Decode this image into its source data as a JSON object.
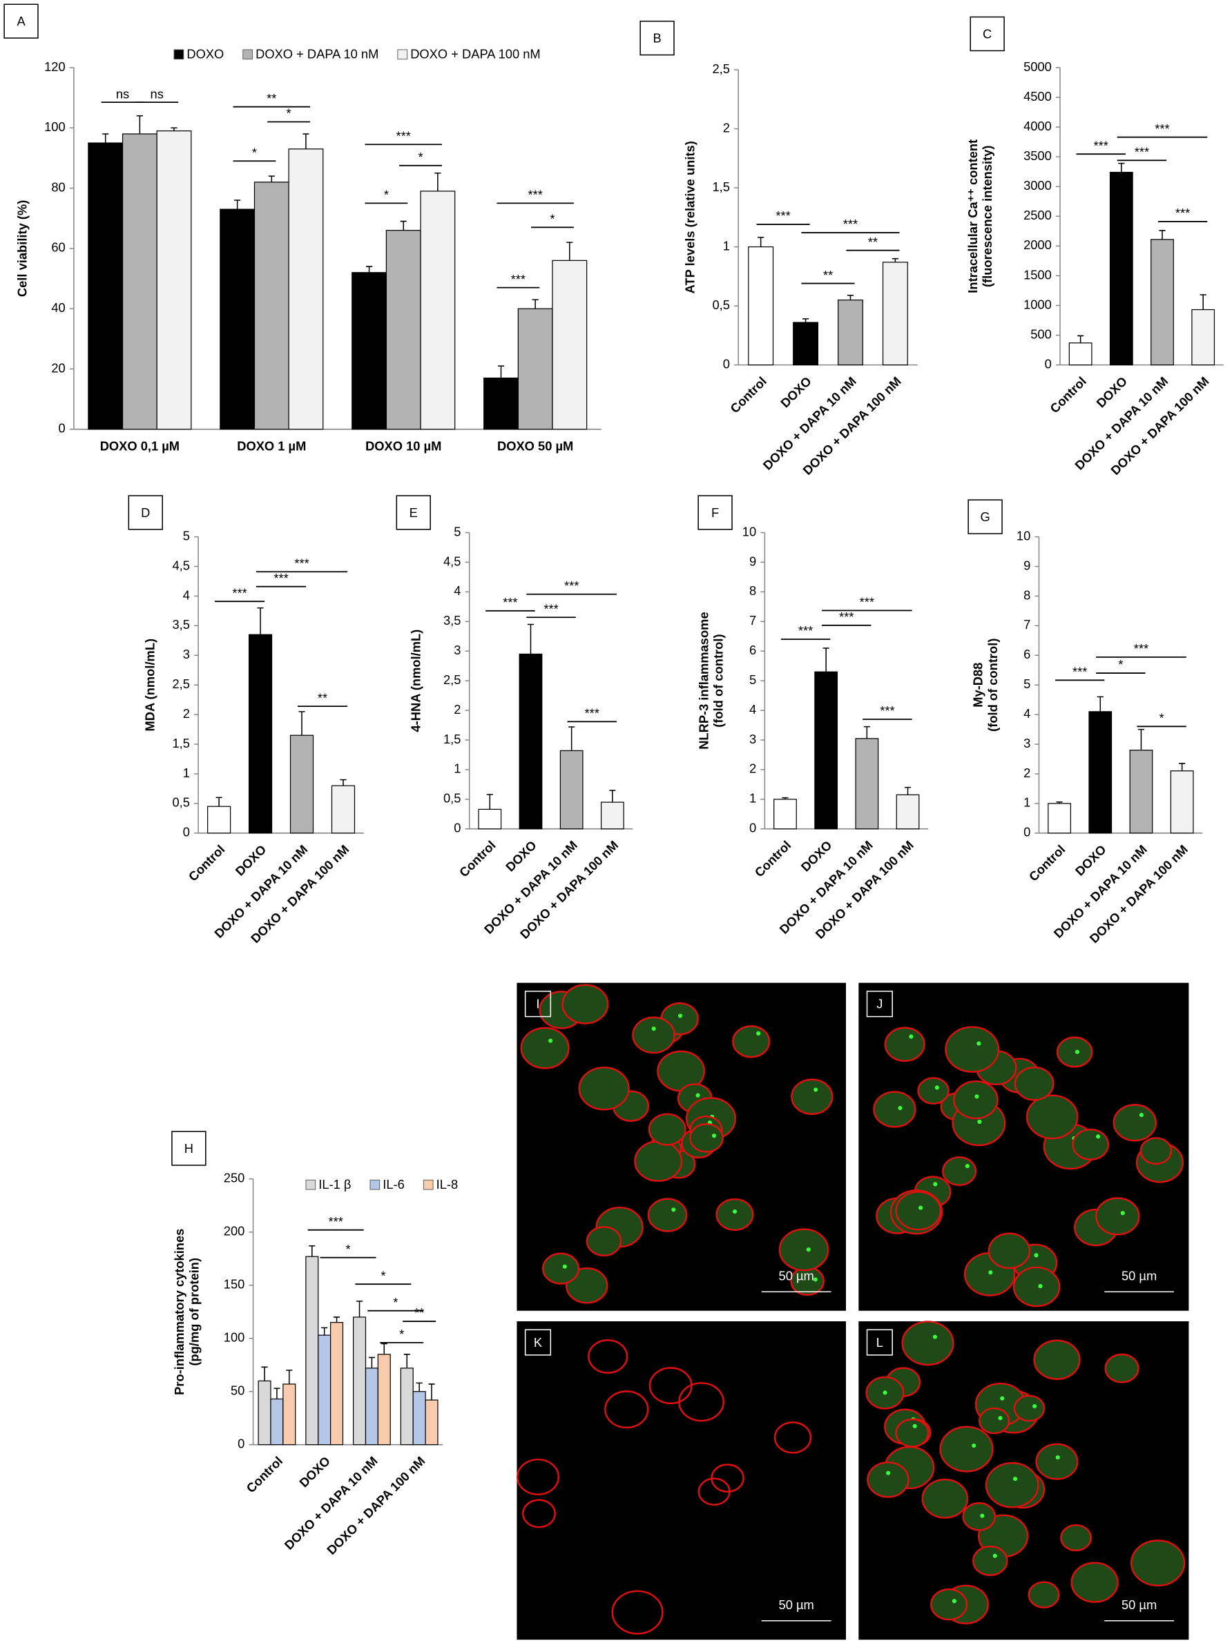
{
  "chart_data": [
    {
      "type": "bar",
      "panel": "A",
      "y_label": [
        "Cell viability (%)"
      ],
      "categories": [
        "DOXO  0,1 µM",
        "DOXO 1 µM",
        "DOXO 10 µM",
        "DOXO 50 µM"
      ],
      "series": [
        {
          "name": "DOXO",
          "color": "#000000",
          "values": [
            95,
            73,
            52,
            17
          ],
          "errors": [
            3,
            3,
            2,
            4
          ]
        },
        {
          "name": "DOXO + DAPA 10  nM",
          "color": "#b3b3b3",
          "values": [
            98,
            82,
            66,
            40
          ],
          "errors": [
            6,
            2,
            3,
            3
          ]
        },
        {
          "name": "DOXO + DAPA 100  nM",
          "color": "#f2f2f2",
          "values": [
            99,
            93,
            79,
            56
          ],
          "errors": [
            1,
            5,
            6,
            6
          ]
        }
      ],
      "ylim": [
        0,
        120
      ],
      "yticks": [
        0,
        20,
        40,
        60,
        80,
        100,
        120
      ],
      "annotations": [
        "ns",
        "ns",
        "**",
        "*",
        "*",
        "***",
        "*",
        "*",
        "***",
        "*",
        "***"
      ]
    },
    {
      "type": "bar",
      "panel": "B",
      "y_label": [
        "ATP levels (relative units)"
      ],
      "categories": [
        "Control",
        "DOXO",
        "DOXO + DAPA 10 nM",
        "DOXO + DAPA 100 nM"
      ],
      "values": [
        1,
        0.36,
        0.55,
        0.87
      ],
      "errors": [
        0.08,
        0.03,
        0.04,
        0.03
      ],
      "colors": [
        "#ffffff",
        "#000000",
        "#b3b3b3",
        "#f2f2f2"
      ],
      "ylim": [
        0,
        2.5
      ],
      "yticks": [
        0,
        {
          "value": 0.5,
          "label": "0,5"
        },
        1,
        {
          "value": 1.5,
          "label": "1,5"
        },
        2,
        {
          "value": 2.5,
          "label": "2,5"
        }
      ],
      "annotations": [
        "***",
        "***",
        "**",
        "**"
      ]
    },
    {
      "type": "bar",
      "panel": "C",
      "y_label": [
        "Intracellular Ca⁺⁺ content",
        "(fluorescence intensity)"
      ],
      "categories": [
        "Control",
        "DOXO",
        "DOXO + DAPA 10 nM",
        "DOXO + DAPA 100 nM"
      ],
      "values": [
        370,
        3240,
        2110,
        930
      ],
      "errors": [
        120,
        150,
        150,
        250
      ],
      "colors": [
        "#ffffff",
        "#000000",
        "#b3b3b3",
        "#f2f2f2"
      ],
      "ylim": [
        0,
        5000
      ],
      "yticks": [
        0,
        500,
        1000,
        1500,
        2000,
        2500,
        3000,
        3500,
        4000,
        4500,
        5000
      ],
      "annotations": [
        "***",
        "***",
        "***",
        "***"
      ]
    },
    {
      "type": "bar",
      "panel": "D",
      "y_label": [
        "MDA (nmol/mL)"
      ],
      "categories": [
        "Control",
        "DOXO",
        "DOXO + DAPA 10 nM",
        "DOXO + DAPA 100 nM"
      ],
      "values": [
        0.45,
        3.35,
        1.65,
        0.8
      ],
      "errors": [
        0.15,
        0.45,
        0.4,
        0.1
      ],
      "colors": [
        "#ffffff",
        "#000000",
        "#b3b3b3",
        "#f2f2f2"
      ],
      "ylim": [
        0,
        5
      ],
      "yticks": [
        0,
        {
          "value": 0.5,
          "label": "0,5"
        },
        1,
        {
          "value": 1.5,
          "label": "1,5"
        },
        2,
        {
          "value": 2.5,
          "label": "2,5"
        },
        3,
        {
          "value": 3.5,
          "label": "3,5"
        },
        4,
        {
          "value": 4.5,
          "label": "4,5"
        },
        5
      ],
      "annotations": [
        "***",
        "***",
        "***",
        "**"
      ]
    },
    {
      "type": "bar",
      "panel": "E",
      "y_label": [
        "4-HNA (nmol/mL)"
      ],
      "categories": [
        "Control",
        "DOXO",
        "DOXO + DAPA 10 nM",
        "DOXO + DAPA 100 nM"
      ],
      "values": [
        0.33,
        2.95,
        1.32,
        0.45
      ],
      "errors": [
        0.25,
        0.5,
        0.4,
        0.2
      ],
      "colors": [
        "#ffffff",
        "#000000",
        "#b3b3b3",
        "#f2f2f2"
      ],
      "ylim": [
        0,
        5
      ],
      "yticks": [
        0,
        {
          "value": 0.5,
          "label": "0,5"
        },
        1,
        {
          "value": 1.5,
          "label": "1,5"
        },
        2,
        {
          "value": 2.5,
          "label": "2,5"
        },
        3,
        {
          "value": 3.5,
          "label": "3,5"
        },
        4,
        {
          "value": 4.5,
          "label": "4,5"
        },
        5
      ],
      "annotations": [
        "***",
        "***",
        "***",
        "***"
      ]
    },
    {
      "type": "bar",
      "panel": "F",
      "y_label": [
        "NLRP-3 inflammasome",
        "(fold of control)"
      ],
      "categories": [
        "Control",
        "DOXO",
        "DOXO + DAPA 10 nM",
        "DOXO + DAPA 100 nM"
      ],
      "values": [
        1,
        5.3,
        3.05,
        1.15
      ],
      "errors": [
        0.05,
        0.8,
        0.4,
        0.25
      ],
      "colors": [
        "#ffffff",
        "#000000",
        "#b3b3b3",
        "#f2f2f2"
      ],
      "ylim": [
        0,
        10
      ],
      "yticks": [
        0,
        1,
        2,
        3,
        4,
        5,
        6,
        7,
        8,
        9,
        10
      ],
      "annotations": [
        "***",
        "***",
        "***",
        "***"
      ]
    },
    {
      "type": "bar",
      "panel": "G",
      "y_label": [
        "My-D88",
        "(fold of control)"
      ],
      "categories": [
        "Control",
        "DOXO",
        "DOXO + DAPA 10 nM",
        "DOXO + DAPA 100 nM"
      ],
      "values": [
        1,
        4.1,
        2.8,
        2.1
      ],
      "errors": [
        0.05,
        0.5,
        0.7,
        0.25
      ],
      "colors": [
        "#ffffff",
        "#000000",
        "#b3b3b3",
        "#f2f2f2"
      ],
      "ylim": [
        0,
        10
      ],
      "yticks": [
        0,
        1,
        2,
        3,
        4,
        5,
        6,
        7,
        8,
        9,
        10
      ],
      "annotations": [
        "***",
        "***",
        "*",
        "*"
      ]
    },
    {
      "type": "bar",
      "panel": "H",
      "y_label": [
        "Pro-inflammatory  cytokines",
        "(pg/mg of protein)"
      ],
      "categories": [
        "Control",
        "DOXO",
        "DOXO + DAPA 10 nM",
        "DOXO + DAPA 100 nM"
      ],
      "series": [
        {
          "name": "IL-1 β",
          "color": "#d9d9d9",
          "values": [
            60,
            177,
            120,
            72
          ],
          "errors": [
            13,
            10,
            15,
            13
          ]
        },
        {
          "name": "IL-6",
          "color": "#b4c7e7",
          "values": [
            43,
            103,
            72,
            50
          ],
          "errors": [
            10,
            7,
            10,
            8
          ]
        },
        {
          "name": "IL-8",
          "color": "#f8cbad",
          "values": [
            57,
            115,
            85,
            42
          ],
          "errors": [
            13,
            5,
            10,
            15
          ]
        }
      ],
      "ylim": [
        0,
        250
      ],
      "yticks": [
        0,
        50,
        100,
        150,
        200,
        250
      ],
      "annotations": [
        "***",
        "*",
        "*",
        "*",
        "**",
        "*"
      ]
    }
  ],
  "images": [
    {
      "label": "I",
      "scale": "50 µm"
    },
    {
      "label": "J",
      "scale": "50 µm"
    },
    {
      "label": "K",
      "scale": "50 µm"
    },
    {
      "label": "L",
      "scale": "50 µm"
    }
  ]
}
